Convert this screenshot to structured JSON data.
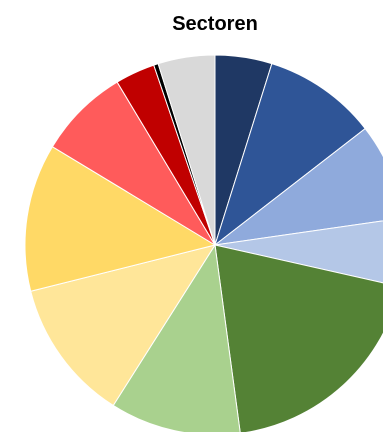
{
  "chart_data": {
    "type": "pie",
    "title": "Sectoren",
    "start_angle_deg": 0,
    "direction": "clockwise",
    "slices": [
      {
        "value": 5.0,
        "color": "#1F3864"
      },
      {
        "value": 10.0,
        "color": "#2F5597"
      },
      {
        "value": 8.5,
        "color": "#8FAADC"
      },
      {
        "value": 6.0,
        "color": "#B4C7E7"
      },
      {
        "value": 20.0,
        "color": "#548235"
      },
      {
        "value": 11.5,
        "color": "#A9D18E"
      },
      {
        "value": 12.5,
        "color": "#FFE699"
      },
      {
        "value": 13.0,
        "color": "#FFD966"
      },
      {
        "value": 8.0,
        "color": "#FF5B5B"
      },
      {
        "value": 3.5,
        "color": "#C00000"
      },
      {
        "value": 0.4,
        "color": "#000000"
      },
      {
        "value": 5.0,
        "color": "#D9D9D9"
      }
    ]
  }
}
